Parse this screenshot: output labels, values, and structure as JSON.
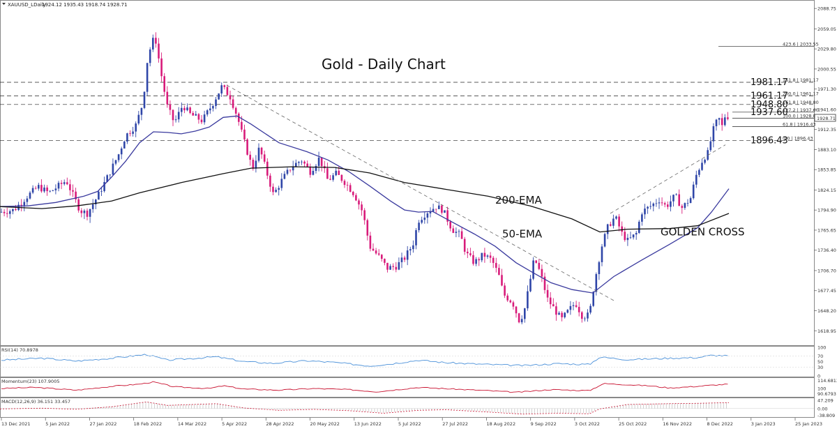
{
  "chart_data": {
    "type": "candlestick",
    "symbol_header": "XAUUSD_LDaily",
    "ohlc_header": "1924.12 1935.43 1918.74 1928.71",
    "title": "Gold - Daily Chart",
    "last_price_label": "1928.71",
    "price_ticks": [
      "2088.75",
      "2059.05",
      "2029.80",
      "2000.55",
      "1971.30",
      "1941.60",
      "1912.35",
      "1883.10",
      "1853.85",
      "1824.15",
      "1794.90",
      "1765.65",
      "1736.40",
      "1706.70",
      "1677.45",
      "1648.20",
      "1618.95"
    ],
    "date_ticks": [
      "13 Dec 2021",
      "5 Jan 2022",
      "27 Jan 2022",
      "18 Feb 2022",
      "14 Mar 2022",
      "5 Apr 2022",
      "28 Apr 2022",
      "20 May 2022",
      "13 Jun 2022",
      "5 Jul 2022",
      "27 Jul 2022",
      "18 Aug 2022",
      "9 Sep 2022",
      "3 Oct 2022",
      "25 Oct 2022",
      "16 Nov 2022",
      "8 Dec 2022",
      "3 Jan 2023",
      "25 Jan 2023"
    ],
    "price_range": [
      1605,
      2095
    ],
    "series": [
      {
        "name": "50-EMA",
        "color": "#3a3a9e",
        "points": [
          [
            0,
            1800
          ],
          [
            40,
            1801
          ],
          [
            80,
            1806
          ],
          [
            120,
            1815
          ],
          [
            140,
            1822
          ],
          [
            160,
            1843
          ],
          [
            180,
            1866
          ],
          [
            200,
            1893
          ],
          [
            220,
            1909
          ],
          [
            240,
            1908
          ],
          [
            260,
            1906
          ],
          [
            280,
            1910
          ],
          [
            300,
            1916
          ],
          [
            320,
            1930
          ],
          [
            340,
            1932
          ],
          [
            360,
            1920
          ],
          [
            400,
            1893
          ],
          [
            440,
            1880
          ],
          [
            470,
            1868
          ],
          [
            500,
            1851
          ],
          [
            530,
            1830
          ],
          [
            560,
            1808
          ],
          [
            580,
            1795
          ],
          [
            600,
            1792
          ],
          [
            620,
            1793
          ],
          [
            640,
            1782
          ],
          [
            680,
            1760
          ],
          [
            710,
            1742
          ],
          [
            740,
            1718
          ],
          [
            760,
            1706
          ],
          [
            790,
            1689
          ],
          [
            820,
            1679
          ],
          [
            850,
            1674
          ],
          [
            880,
            1698
          ],
          [
            920,
            1722
          ],
          [
            960,
            1745
          ],
          [
            1000,
            1769
          ],
          [
            1020,
            1792
          ],
          [
            1045,
            1826
          ]
        ]
      },
      {
        "name": "200-EMA",
        "color": "#111111",
        "points": [
          [
            0,
            1800
          ],
          [
            60,
            1797
          ],
          [
            110,
            1801
          ],
          [
            160,
            1808
          ],
          [
            200,
            1820
          ],
          [
            260,
            1835
          ],
          [
            320,
            1848
          ],
          [
            360,
            1856
          ],
          [
            420,
            1858
          ],
          [
            480,
            1857
          ],
          [
            530,
            1849
          ],
          [
            580,
            1835
          ],
          [
            640,
            1825
          ],
          [
            700,
            1815
          ],
          [
            760,
            1801
          ],
          [
            820,
            1782
          ],
          [
            860,
            1763
          ],
          [
            900,
            1767
          ],
          [
            960,
            1768
          ],
          [
            1000,
            1772
          ],
          [
            1045,
            1790
          ]
        ]
      }
    ],
    "fib_levels": [
      {
        "value": 1981.17,
        "big": "1981.17",
        "small": "161.8 | 1981.17",
        "style": "dashed"
      },
      {
        "value": 1961.17,
        "big": "1961.17",
        "small": "200.0 | 1961.17",
        "style": "dashed"
      },
      {
        "value": 1948.8,
        "big": "1948.80",
        "small": "161.8 | 1948.80",
        "style": "dashed"
      },
      {
        "value": 1937.6,
        "big": "1937.60",
        "small": "127.2 | 1937.60",
        "style": "solid"
      },
      {
        "value": 1928.8,
        "big": "",
        "small": "100.0 | 1928.80",
        "style": "solid"
      },
      {
        "value": 1916.43,
        "big": "",
        "small": "61.8 | 1916.43",
        "style": "solid"
      },
      {
        "value": 1896.43,
        "big": "1896.43",
        "small": "0.0 | 1896.43",
        "style": "dashed"
      },
      {
        "value": 2033.55,
        "big": "",
        "small": "423.6 | 2033.55",
        "style": "solid"
      }
    ],
    "trendlines": [
      {
        "from": [
          325,
          1977
        ],
        "to": [
          880,
          1663
        ]
      },
      {
        "from": [
          875,
          1790
        ],
        "to": [
          1040,
          1890
        ]
      }
    ],
    "annotations": [
      {
        "text": "200-EMA",
        "x": 710,
        "price": 1804
      },
      {
        "text": "50-EMA",
        "x": 720,
        "price": 1755
      },
      {
        "text": "GOLDEN CROSS",
        "x": 947,
        "price": 1758
      }
    ],
    "price_anchors": [
      [
        0,
        1792
      ],
      [
        20,
        1795
      ],
      [
        40,
        1816
      ],
      [
        55,
        1829
      ],
      [
        70,
        1820
      ],
      [
        95,
        1838
      ],
      [
        115,
        1794
      ],
      [
        125,
        1790
      ],
      [
        140,
        1815
      ],
      [
        155,
        1845
      ],
      [
        170,
        1876
      ],
      [
        180,
        1903
      ],
      [
        195,
        1919
      ],
      [
        205,
        1952
      ],
      [
        212,
        2020
      ],
      [
        222,
        2050
      ],
      [
        232,
        1988
      ],
      [
        240,
        1945
      ],
      [
        250,
        1922
      ],
      [
        262,
        1948
      ],
      [
        272,
        1935
      ],
      [
        290,
        1925
      ],
      [
        305,
        1950
      ],
      [
        318,
        1975
      ],
      [
        330,
        1960
      ],
      [
        340,
        1932
      ],
      [
        350,
        1895
      ],
      [
        362,
        1855
      ],
      [
        372,
        1886
      ],
      [
        380,
        1858
      ],
      [
        392,
        1817
      ],
      [
        405,
        1840
      ],
      [
        418,
        1858
      ],
      [
        432,
        1868
      ],
      [
        445,
        1851
      ],
      [
        458,
        1871
      ],
      [
        470,
        1838
      ],
      [
        482,
        1848
      ],
      [
        495,
        1835
      ],
      [
        508,
        1818
      ],
      [
        520,
        1792
      ],
      [
        530,
        1742
      ],
      [
        545,
        1725
      ],
      [
        555,
        1710
      ],
      [
        568,
        1713
      ],
      [
        580,
        1725
      ],
      [
        592,
        1745
      ],
      [
        600,
        1780
      ],
      [
        612,
        1792
      ],
      [
        625,
        1800
      ],
      [
        635,
        1795
      ],
      [
        648,
        1767
      ],
      [
        660,
        1758
      ],
      [
        668,
        1732
      ],
      [
        680,
        1718
      ],
      [
        693,
        1730
      ],
      [
        705,
        1722
      ],
      [
        715,
        1700
      ],
      [
        722,
        1672
      ],
      [
        735,
        1660
      ],
      [
        745,
        1632
      ],
      [
        752,
        1650
      ],
      [
        760,
        1692
      ],
      [
        766,
        1725
      ],
      [
        775,
        1702
      ],
      [
        785,
        1665
      ],
      [
        795,
        1650
      ],
      [
        805,
        1635
      ],
      [
        815,
        1648
      ],
      [
        825,
        1660
      ],
      [
        835,
        1640
      ],
      [
        845,
        1642
      ],
      [
        852,
        1688
      ],
      [
        862,
        1740
      ],
      [
        872,
        1772
      ],
      [
        882,
        1785
      ],
      [
        892,
        1760
      ],
      [
        900,
        1750
      ],
      [
        912,
        1760
      ],
      [
        920,
        1792
      ],
      [
        932,
        1800
      ],
      [
        945,
        1810
      ],
      [
        955,
        1800
      ],
      [
        968,
        1816
      ],
      [
        978,
        1798
      ],
      [
        990,
        1812
      ],
      [
        998,
        1845
      ],
      [
        1008,
        1870
      ],
      [
        1015,
        1878
      ],
      [
        1022,
        1910
      ],
      [
        1030,
        1930
      ],
      [
        1036,
        1915
      ],
      [
        1040,
        1935
      ],
      [
        1045,
        1930
      ]
    ],
    "indicators": {
      "rsi": {
        "label": "RSI(14) 70.8978",
        "ticks": [
          "100",
          "70",
          "50",
          "30",
          "0"
        ],
        "range": [
          0,
          100
        ],
        "color": "#4a90d9",
        "points": [
          [
            0,
            55
          ],
          [
            60,
            62
          ],
          [
            110,
            52
          ],
          [
            160,
            62
          ],
          [
            210,
            75
          ],
          [
            240,
            55
          ],
          [
            310,
            67
          ],
          [
            350,
            50
          ],
          [
            390,
            44
          ],
          [
            440,
            53
          ],
          [
            480,
            47
          ],
          [
            530,
            35
          ],
          [
            560,
            42
          ],
          [
            600,
            55
          ],
          [
            640,
            46
          ],
          [
            700,
            40
          ],
          [
            750,
            36
          ],
          [
            800,
            43
          ],
          [
            845,
            40
          ],
          [
            860,
            66
          ],
          [
            900,
            57
          ],
          [
            960,
            62
          ],
          [
            1000,
            64
          ],
          [
            1020,
            72
          ],
          [
            1045,
            70
          ]
        ]
      },
      "momentum": {
        "label": "Momentum(23) 107.9005",
        "ticks": [
          "114.6813",
          "100",
          "90.6793"
        ],
        "range": [
          86,
          118
        ],
        "color": "#c8102e",
        "points": [
          [
            0,
            100
          ],
          [
            50,
            102
          ],
          [
            110,
            97
          ],
          [
            160,
            104
          ],
          [
            200,
            108
          ],
          [
            220,
            112
          ],
          [
            250,
            103
          ],
          [
            300,
            100
          ],
          [
            320,
            105
          ],
          [
            350,
            99
          ],
          [
            400,
            97
          ],
          [
            450,
            100
          ],
          [
            500,
            98
          ],
          [
            540,
            94
          ],
          [
            600,
            102
          ],
          [
            650,
            99
          ],
          [
            700,
            96
          ],
          [
            740,
            93
          ],
          [
            790,
            98
          ],
          [
            845,
            96
          ],
          [
            865,
            109
          ],
          [
            900,
            107
          ],
          [
            930,
            105
          ],
          [
            960,
            101
          ],
          [
            1000,
            104
          ],
          [
            1020,
            106
          ],
          [
            1045,
            108
          ]
        ]
      },
      "macd": {
        "label": "MACD(12,26,9) 36.151 33.457",
        "ticks": [
          "47.209",
          "0.00",
          "-38.809"
        ],
        "range": [
          -45,
          55
        ],
        "color": "#c8102e",
        "points": [
          [
            0,
            0
          ],
          [
            60,
            4
          ],
          [
            110,
            -2
          ],
          [
            160,
            12
          ],
          [
            210,
            40
          ],
          [
            240,
            20
          ],
          [
            310,
            30
          ],
          [
            350,
            5
          ],
          [
            400,
            -8
          ],
          [
            450,
            -3
          ],
          [
            500,
            -10
          ],
          [
            550,
            -25
          ],
          [
            600,
            -8
          ],
          [
            640,
            -5
          ],
          [
            700,
            -18
          ],
          [
            750,
            -30
          ],
          [
            800,
            -25
          ],
          [
            845,
            -28
          ],
          [
            860,
            0
          ],
          [
            900,
            25
          ],
          [
            960,
            30
          ],
          [
            1000,
            32
          ],
          [
            1045,
            36
          ]
        ]
      }
    }
  }
}
